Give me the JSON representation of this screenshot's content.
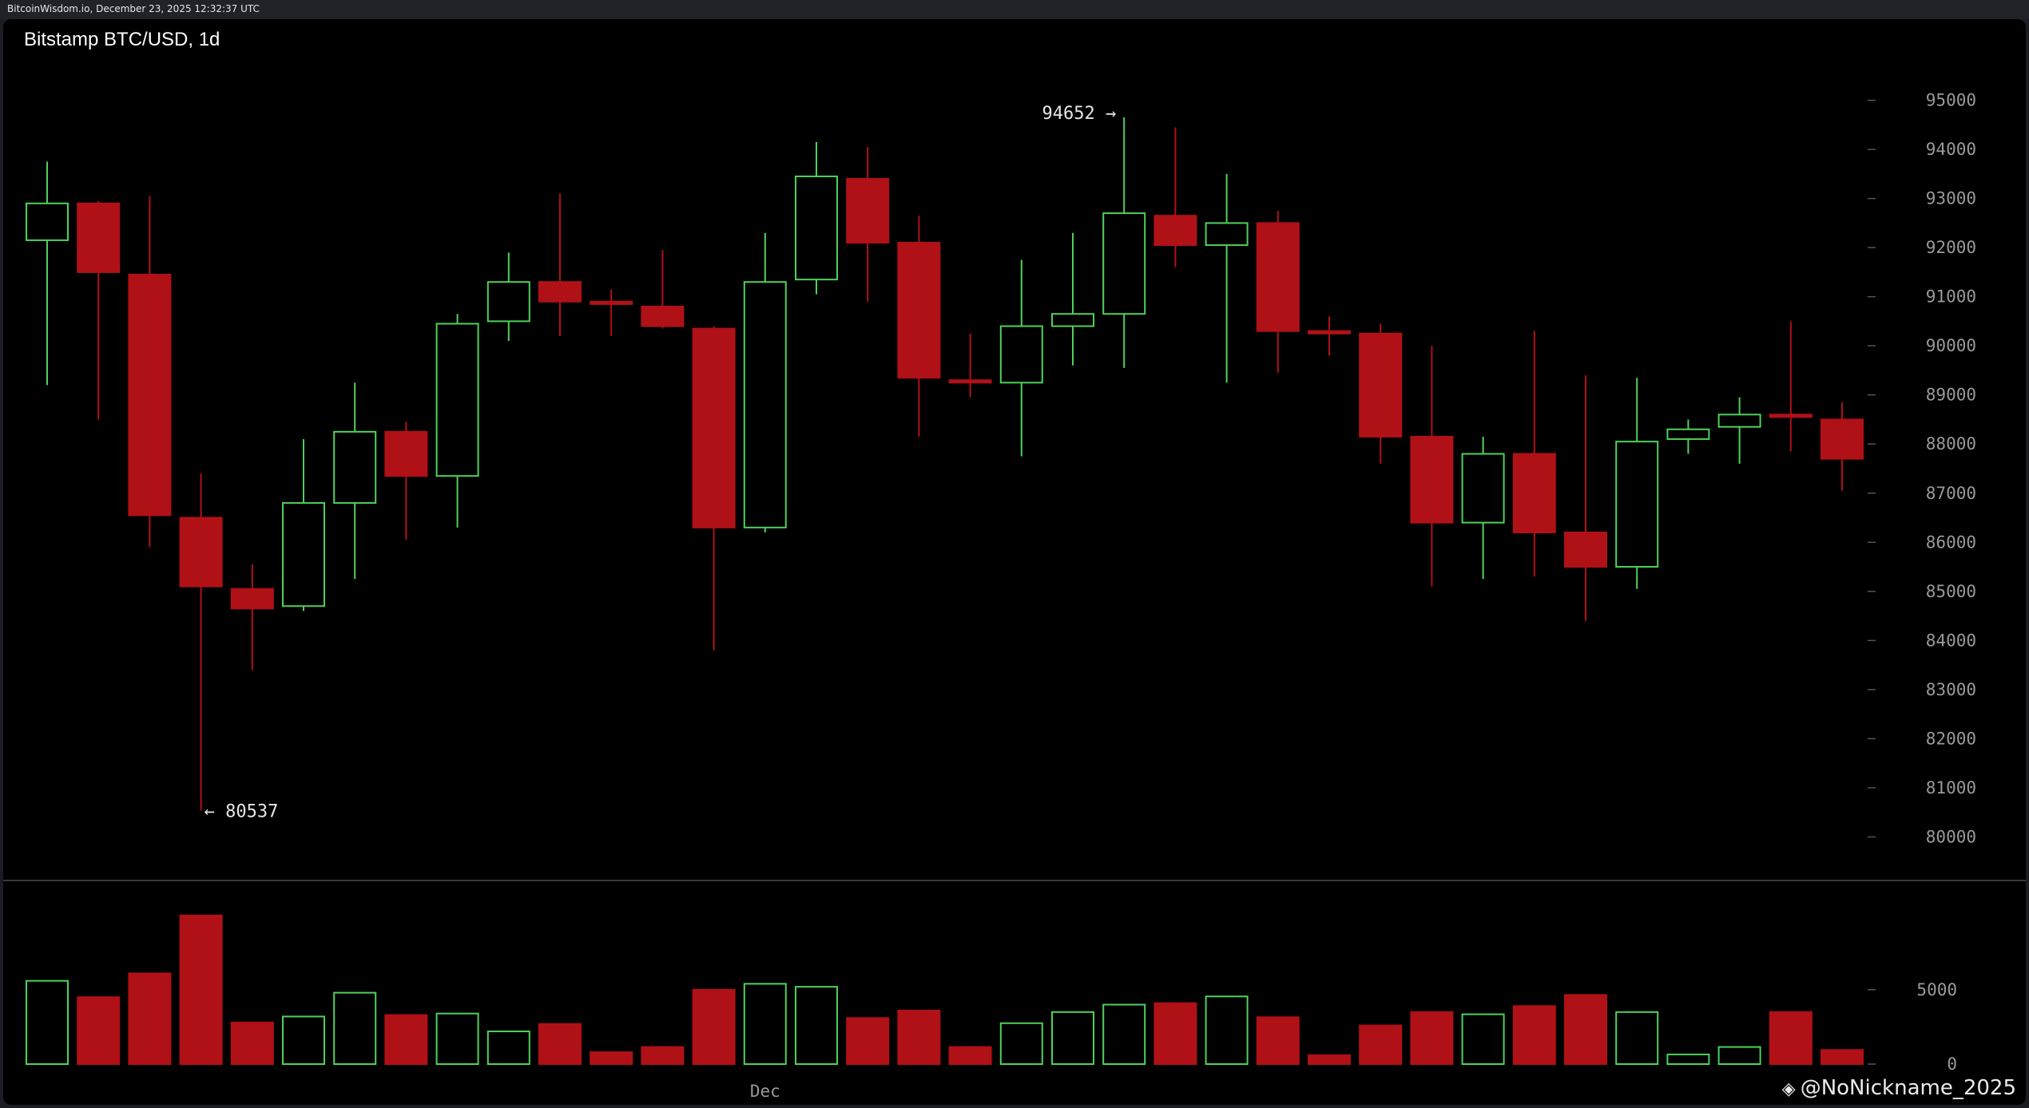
{
  "topbar": {
    "text": "BitcoinWisdom.io, December 23, 2025 12:32:37 UTC"
  },
  "chart_title": "Bitstamp BTC/USD, 1d",
  "watermark": {
    "icon": "binance-logo-icon",
    "text": "@NoNickname_2025"
  },
  "colors": {
    "up": "#4ed15a",
    "down": "#b01116",
    "text": "#e6e6e6",
    "tick": "#9a9a9a",
    "separator": "#4a4a4a"
  },
  "chart_data": [
    {
      "type": "candlestick",
      "title": "Bitstamp BTC/USD, 1d",
      "xlabel": "",
      "ylabel": "",
      "ylim": [
        79600,
        95400
      ],
      "yticks": [
        80000,
        81000,
        82000,
        83000,
        84000,
        85000,
        86000,
        87000,
        88000,
        89000,
        90000,
        91000,
        92000,
        93000,
        94000,
        95000
      ],
      "x_tick_labels": [
        {
          "index": 14,
          "label": "Dec"
        }
      ],
      "annotations": [
        {
          "index": 21,
          "price": 94652,
          "text": "94652 →"
        },
        {
          "index": 3,
          "price": 80537,
          "text": "← 80537"
        }
      ],
      "candles": [
        {
          "o": 92150,
          "h": 93750,
          "l": 89200,
          "c": 92900
        },
        {
          "o": 92900,
          "h": 92950,
          "l": 88500,
          "c": 91500
        },
        {
          "o": 91450,
          "h": 93050,
          "l": 85900,
          "c": 86550
        },
        {
          "o": 86500,
          "h": 87400,
          "l": 80537,
          "c": 85100
        },
        {
          "o": 85050,
          "h": 85550,
          "l": 83400,
          "c": 84650
        },
        {
          "o": 84700,
          "h": 88100,
          "l": 84600,
          "c": 86800
        },
        {
          "o": 86800,
          "h": 89250,
          "l": 85250,
          "c": 88250
        },
        {
          "o": 88250,
          "h": 88450,
          "l": 86050,
          "c": 87350
        },
        {
          "o": 87350,
          "h": 90650,
          "l": 86300,
          "c": 90450
        },
        {
          "o": 90500,
          "h": 91900,
          "l": 90100,
          "c": 91300
        },
        {
          "o": 91300,
          "h": 93100,
          "l": 90200,
          "c": 90900
        },
        {
          "o": 90900,
          "h": 91150,
          "l": 90200,
          "c": 90850
        },
        {
          "o": 90800,
          "h": 91950,
          "l": 90350,
          "c": 90400
        },
        {
          "o": 90350,
          "h": 90400,
          "l": 83800,
          "c": 86300
        },
        {
          "o": 86300,
          "h": 92300,
          "l": 86200,
          "c": 91300
        },
        {
          "o": 91350,
          "h": 94150,
          "l": 91050,
          "c": 93450
        },
        {
          "o": 93400,
          "h": 94050,
          "l": 90900,
          "c": 92100
        },
        {
          "o": 92100,
          "h": 92650,
          "l": 88150,
          "c": 89350
        },
        {
          "o": 89300,
          "h": 90250,
          "l": 88950,
          "c": 89250
        },
        {
          "o": 89250,
          "h": 91750,
          "l": 87750,
          "c": 90400
        },
        {
          "o": 90400,
          "h": 92300,
          "l": 89600,
          "c": 90650
        },
        {
          "o": 90650,
          "h": 94652,
          "l": 89550,
          "c": 92700
        },
        {
          "o": 92650,
          "h": 94450,
          "l": 91600,
          "c": 92050
        },
        {
          "o": 92050,
          "h": 93500,
          "l": 89250,
          "c": 92500
        },
        {
          "o": 92500,
          "h": 92750,
          "l": 89450,
          "c": 90300
        },
        {
          "o": 90300,
          "h": 90600,
          "l": 89800,
          "c": 90250
        },
        {
          "o": 90250,
          "h": 90450,
          "l": 87600,
          "c": 88150
        },
        {
          "o": 88150,
          "h": 90000,
          "l": 85100,
          "c": 86400
        },
        {
          "o": 86400,
          "h": 88150,
          "l": 85250,
          "c": 87800
        },
        {
          "o": 87800,
          "h": 90300,
          "l": 85300,
          "c": 86200
        },
        {
          "o": 86200,
          "h": 89400,
          "l": 84400,
          "c": 85500
        },
        {
          "o": 85500,
          "h": 89350,
          "l": 85050,
          "c": 88050
        },
        {
          "o": 88100,
          "h": 88500,
          "l": 87800,
          "c": 88300
        },
        {
          "o": 88350,
          "h": 88950,
          "l": 87600,
          "c": 88600
        },
        {
          "o": 88600,
          "h": 90500,
          "l": 87850,
          "c": 88550
        },
        {
          "o": 88500,
          "h": 88850,
          "l": 87050,
          "c": 87700
        }
      ],
      "volume": {
        "ylim": [
          0,
          10200
        ],
        "yticks": [
          0,
          5000
        ],
        "values": [
          5600,
          4500,
          6100,
          10000,
          2800,
          3200,
          4800,
          3300,
          3400,
          2200,
          2700,
          800,
          1150,
          5000,
          5400,
          5200,
          3100,
          3600,
          1150,
          2750,
          3500,
          4000,
          4100,
          4550,
          3150,
          600,
          2600,
          3500,
          3350,
          3900,
          4650,
          3500,
          650,
          1150,
          3500,
          950
        ]
      }
    }
  ]
}
